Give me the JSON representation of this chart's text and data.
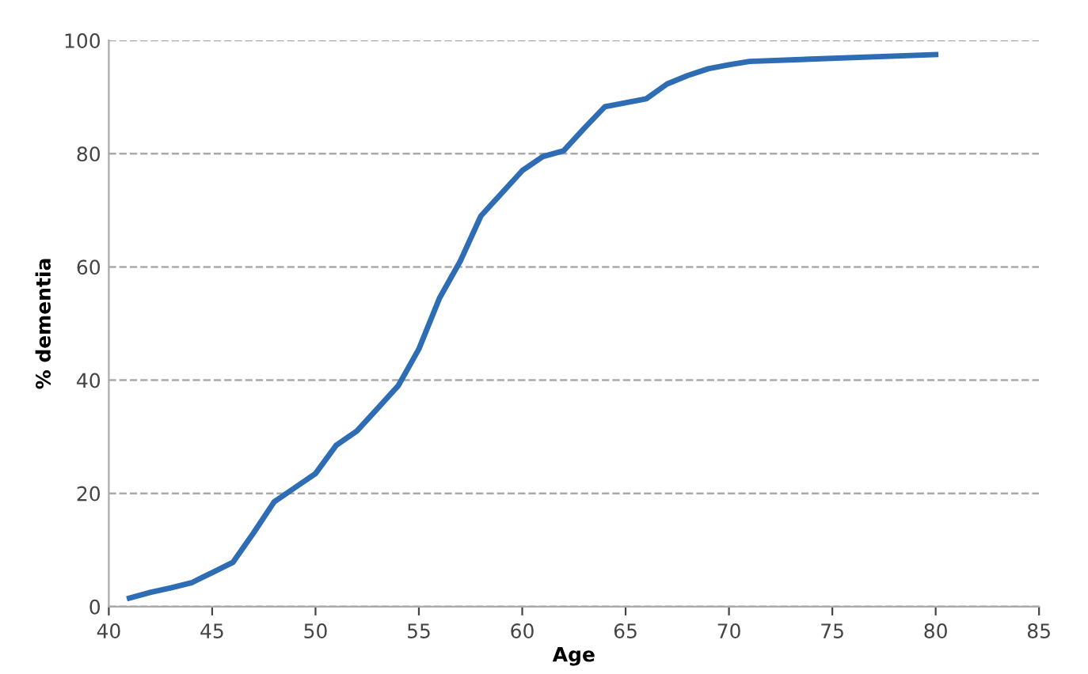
{
  "chart_data": {
    "type": "line",
    "xlabel": "Age",
    "ylabel": "% dementia",
    "xlim": [
      40,
      85
    ],
    "xticks": [
      40,
      45,
      50,
      55,
      60,
      65,
      70,
      75,
      80,
      85
    ],
    "ylim": [
      0,
      100
    ],
    "yticks": [
      0,
      20,
      40,
      60,
      80,
      100
    ],
    "grid": "y",
    "line_style": "solid",
    "series": [
      {
        "color": "#2e6db4",
        "x": [
          41,
          42,
          43,
          44,
          45,
          46,
          47,
          48,
          49,
          50,
          51,
          52,
          53,
          54,
          55,
          56,
          57,
          58,
          59,
          60,
          61,
          62,
          63,
          64,
          65,
          66,
          67,
          68,
          69,
          70,
          71,
          80
        ],
        "values": [
          1.5,
          2.5,
          3.3,
          4.2,
          6,
          7.8,
          13,
          18.5,
          21,
          23.5,
          28.5,
          31,
          35,
          39,
          45.5,
          54.5,
          61,
          69,
          73,
          77,
          79.5,
          80.5,
          84.5,
          88.3,
          89,
          89.7,
          92.3,
          93.8,
          95,
          95.7,
          96.3,
          97.5
        ]
      }
    ]
  }
}
